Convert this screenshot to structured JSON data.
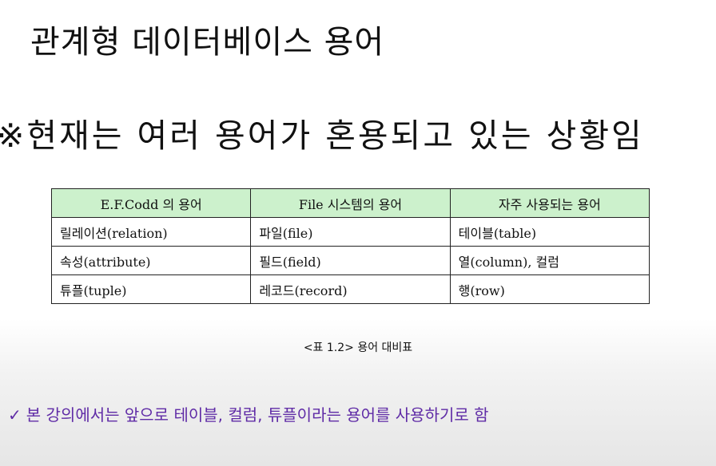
{
  "slide": {
    "title": "관계형 데이터베이스 용어",
    "note": "※현재는 여러 용어가 혼용되고 있는 상황임"
  },
  "term_table": {
    "headers": [
      "E.F.Codd 의 용어",
      "File 시스템의 용어",
      "자주 사용되는 용어"
    ],
    "rows": [
      [
        "릴레이션(relation)",
        "파일(file)",
        "테이블(table)"
      ],
      [
        "속성(attribute)",
        "필드(field)",
        "열(column), 컬럼"
      ],
      [
        "튜플(tuple)",
        "레코드(record)",
        "행(row)"
      ]
    ],
    "header_color": "#ccf1cc"
  },
  "caption": "<표 1.2> 용어 대비표",
  "conclusion": {
    "icon": "check-icon",
    "mark": "✓",
    "text": "본 강의에서는 앞으로 테이블, 컬럼, 튜플이라는 용어를 사용하기로 함",
    "color": "#5f2ba6"
  }
}
